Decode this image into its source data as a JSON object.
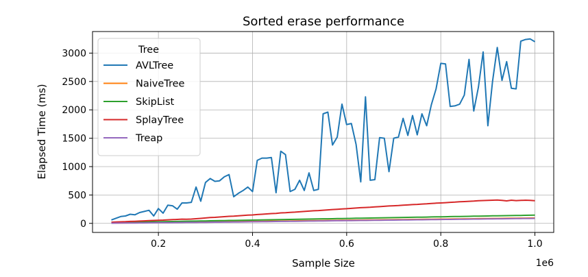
{
  "chart_data": {
    "type": "line",
    "title": "Sorted erase performance",
    "xlabel": "Sample Size",
    "ylabel": "Elapsed Time (ms)",
    "x_offset_label": "1e6",
    "xlim": [
      0.06,
      1.04
    ],
    "ylim": [
      -160,
      3380
    ],
    "xticks": [
      0.2,
      0.4,
      0.6,
      0.8,
      1.0
    ],
    "xtick_labels": [
      "0.2",
      "0.4",
      "0.6",
      "0.8",
      "1.0"
    ],
    "yticks": [
      0,
      500,
      1000,
      1500,
      2000,
      2500,
      3000
    ],
    "ytick_labels": [
      "0",
      "500",
      "1000",
      "1500",
      "2000",
      "2500",
      "3000"
    ],
    "grid": true,
    "legend_title": "Tree",
    "legend_position": "top-left",
    "x": [
      0.1,
      0.11,
      0.12,
      0.13,
      0.14,
      0.15,
      0.16,
      0.17,
      0.18,
      0.19,
      0.2,
      0.21,
      0.22,
      0.23,
      0.24,
      0.25,
      0.26,
      0.27,
      0.28,
      0.29,
      0.3,
      0.31,
      0.32,
      0.33,
      0.34,
      0.35,
      0.36,
      0.37,
      0.38,
      0.39,
      0.4,
      0.41,
      0.42,
      0.43,
      0.44,
      0.45,
      0.46,
      0.47,
      0.48,
      0.49,
      0.5,
      0.51,
      0.52,
      0.53,
      0.54,
      0.55,
      0.56,
      0.57,
      0.58,
      0.59,
      0.6,
      0.61,
      0.62,
      0.63,
      0.64,
      0.65,
      0.66,
      0.67,
      0.68,
      0.69,
      0.7,
      0.71,
      0.72,
      0.73,
      0.74,
      0.75,
      0.76,
      0.77,
      0.78,
      0.79,
      0.8,
      0.81,
      0.82,
      0.83,
      0.84,
      0.85,
      0.86,
      0.87,
      0.88,
      0.89,
      0.9,
      0.91,
      0.92,
      0.93,
      0.94,
      0.95,
      0.96,
      0.97,
      0.98,
      0.99,
      1.0
    ],
    "series": [
      {
        "name": "AVLTree",
        "color": "#1f77b4",
        "values": [
          60,
          90,
          120,
          130,
          160,
          150,
          190,
          210,
          230,
          130,
          260,
          180,
          320,
          310,
          250,
          360,
          360,
          370,
          640,
          390,
          720,
          790,
          740,
          750,
          820,
          860,
          470,
          530,
          580,
          640,
          560,
          1110,
          1150,
          1150,
          1160,
          540,
          1270,
          1210,
          560,
          600,
          760,
          580,
          890,
          580,
          600,
          1930,
          1960,
          1380,
          1520,
          2100,
          1740,
          1760,
          1390,
          730,
          2230,
          760,
          770,
          1510,
          1500,
          910,
          1500,
          1520,
          1850,
          1550,
          1900,
          1560,
          1930,
          1720,
          2090,
          2370,
          2820,
          2810,
          2060,
          2070,
          2100,
          2260,
          2890,
          1980,
          2400,
          3020,
          1720,
          2500,
          3100,
          2520,
          2850,
          2380,
          2370,
          3210,
          3240,
          3250,
          3200
        ]
      },
      {
        "name": "NaiveTree",
        "color": "#ff7f0e",
        "values": [
          5,
          6,
          7,
          8,
          9,
          10,
          11,
          12,
          13,
          14,
          15,
          16,
          17,
          18,
          19,
          20,
          21,
          22,
          23,
          24,
          25,
          26,
          27,
          28,
          29,
          30,
          31,
          32,
          33,
          34,
          35,
          36,
          37,
          38,
          39,
          40,
          41,
          42,
          43,
          44,
          45,
          46,
          47,
          48,
          49,
          50,
          51,
          52,
          53,
          54,
          55,
          56,
          57,
          58,
          59,
          60,
          61,
          62,
          63,
          64,
          65,
          66,
          67,
          68,
          69,
          70,
          71,
          72,
          73,
          74,
          75,
          76,
          77,
          78,
          79,
          80,
          81,
          82,
          83,
          84,
          85,
          86,
          87,
          88,
          89,
          90,
          91,
          92,
          93,
          94,
          95
        ]
      },
      {
        "name": "SkipList",
        "color": "#2ca02c",
        "values": [
          15,
          16,
          18,
          19,
          20,
          22,
          23,
          25,
          26,
          28,
          29,
          30,
          32,
          33,
          35,
          36,
          38,
          39,
          40,
          42,
          43,
          45,
          46,
          48,
          49,
          51,
          52,
          53,
          55,
          56,
          58,
          59,
          61,
          62,
          63,
          65,
          66,
          68,
          69,
          71,
          72,
          74,
          75,
          77,
          78,
          80,
          81,
          82,
          84,
          85,
          87,
          88,
          90,
          91,
          92,
          94,
          95,
          97,
          98,
          100,
          101,
          103,
          104,
          106,
          107,
          108,
          110,
          111,
          113,
          114,
          116,
          117,
          119,
          120,
          121,
          123,
          124,
          126,
          127,
          129,
          130,
          132,
          133,
          135,
          136,
          137,
          139,
          140,
          142,
          143,
          145
        ]
      },
      {
        "name": "SplayTree",
        "color": "#d62728",
        "values": [
          20,
          24,
          27,
          30,
          34,
          37,
          40,
          44,
          48,
          52,
          55,
          58,
          62,
          66,
          70,
          74,
          72,
          76,
          82,
          88,
          95,
          102,
          106,
          112,
          118,
          124,
          128,
          134,
          138,
          145,
          148,
          155,
          160,
          166,
          172,
          176,
          184,
          188,
          194,
          198,
          204,
          210,
          216,
          222,
          226,
          232,
          238,
          244,
          248,
          254,
          258,
          264,
          270,
          276,
          280,
          284,
          290,
          294,
          300,
          306,
          310,
          314,
          320,
          324,
          330,
          334,
          340,
          344,
          350,
          356,
          360,
          364,
          370,
          374,
          380,
          384,
          388,
          392,
          398,
          402,
          405,
          408,
          412,
          406,
          396,
          408,
          400,
          404,
          408,
          404,
          398
        ]
      },
      {
        "name": "Treap",
        "color": "#9467bd",
        "values": [
          3,
          4,
          5,
          5,
          6,
          7,
          8,
          8,
          9,
          10,
          11,
          12,
          13,
          13,
          14,
          15,
          16,
          17,
          17,
          18,
          19,
          20,
          21,
          21,
          22,
          23,
          24,
          25,
          26,
          27,
          28,
          29,
          30,
          31,
          32,
          33,
          34,
          35,
          36,
          37,
          38,
          39,
          40,
          41,
          42,
          43,
          44,
          45,
          46,
          47,
          48,
          49,
          50,
          51,
          52,
          53,
          54,
          55,
          56,
          57,
          58,
          59,
          60,
          61,
          62,
          63,
          64,
          65,
          66,
          67,
          68,
          69,
          70,
          71,
          72,
          73,
          74,
          75,
          76,
          77,
          78,
          79,
          80,
          81,
          82,
          83,
          84,
          85,
          86,
          87,
          88
        ]
      }
    ]
  }
}
